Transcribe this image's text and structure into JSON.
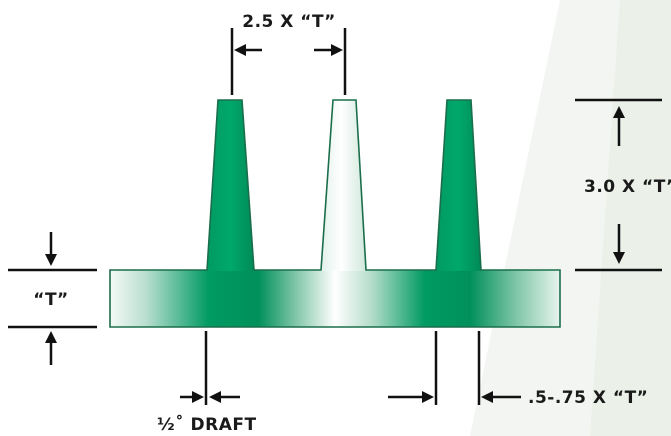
{
  "labels": {
    "rib_spacing": "2.5 X “T”",
    "rib_height": "3.0 X “T”",
    "wall_thickness": "“T”",
    "draft": "½˚ DRAFT",
    "base_thickness": ".5-.75 X “T”"
  },
  "colors": {
    "green": "#009a63",
    "light": "#f4faf6",
    "outline": "#1b6e4c",
    "background_accent": "#eef2ec",
    "dimension": "#111111"
  }
}
